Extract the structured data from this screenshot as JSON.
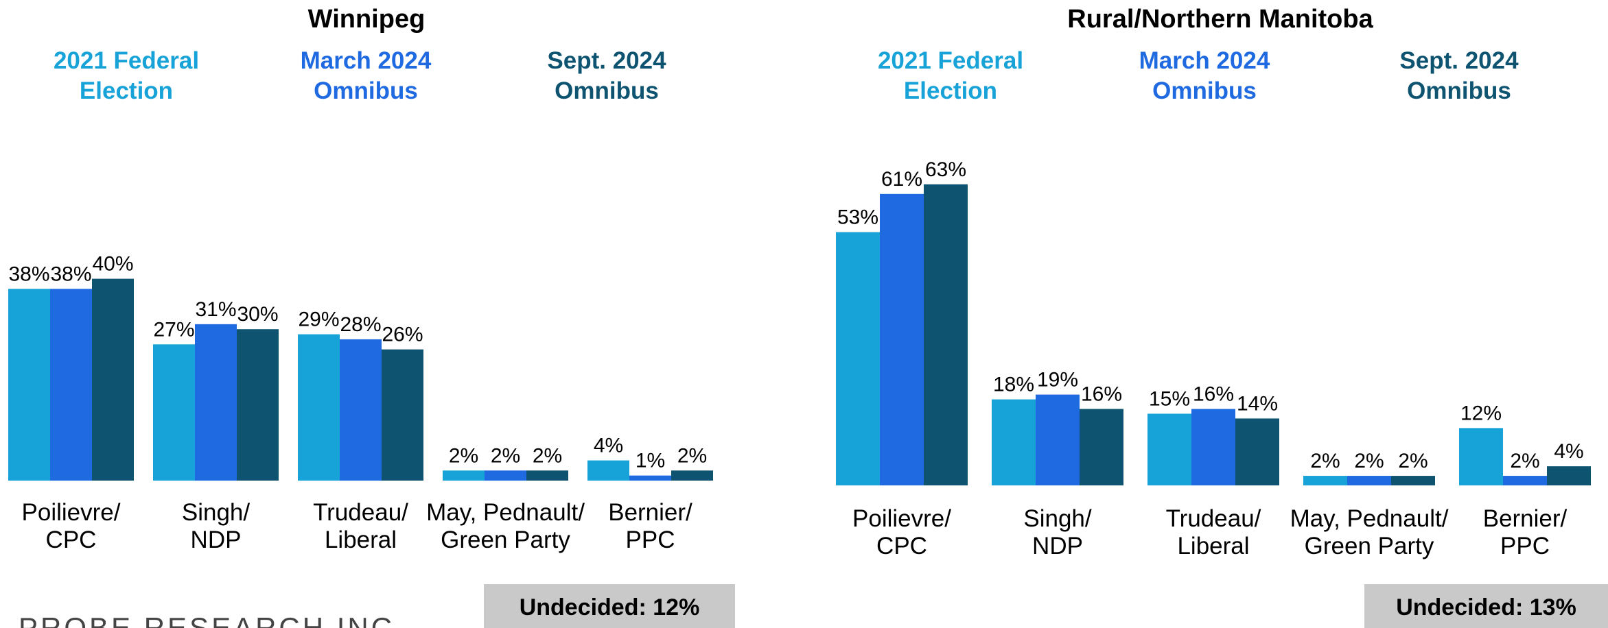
{
  "chart_data": [
    {
      "type": "bar",
      "title": "Winnipeg",
      "categories": [
        "Poilievre/\nCPC",
        "Singh/\nNDP",
        "Trudeau/\nLiberal",
        "May, Pednault/\nGreen Party",
        "Bernier/\nPPC"
      ],
      "series": [
        {
          "name": "2021 Federal\nElection",
          "color": "#17a2d8",
          "values": [
            38,
            27,
            29,
            2,
            4
          ],
          "value_labels": [
            "38%",
            "27%",
            "29%",
            "2%",
            "4%"
          ]
        },
        {
          "name": "March 2024\nOmnibus",
          "color": "#1f6ae0",
          "values": [
            38,
            31,
            28,
            2,
            1
          ],
          "value_labels": [
            "38%",
            "31%",
            "28%",
            "2%",
            "1%"
          ]
        },
        {
          "name": "Sept. 2024\nOmnibus",
          "color": "#0e5470",
          "values": [
            40,
            30,
            26,
            2,
            2
          ],
          "value_labels": [
            "40%",
            "30%",
            "26%",
            "2%",
            "2%"
          ]
        }
      ],
      "annotation": "Undecided: 12%"
    },
    {
      "type": "bar",
      "title": "Rural/Northern Manitoba",
      "categories": [
        "Poilievre/\nCPC",
        "Singh/\nNDP",
        "Trudeau/\nLiberal",
        "May, Pednault/\nGreen Party",
        "Bernier/\nPPC"
      ],
      "series": [
        {
          "name": "2021 Federal\nElection",
          "color": "#17a2d8",
          "values": [
            53,
            18,
            15,
            2,
            12
          ],
          "value_labels": [
            "53%",
            "18%",
            "15%",
            "2%",
            "12%"
          ]
        },
        {
          "name": "March 2024\nOmnibus",
          "color": "#1f6ae0",
          "values": [
            61,
            19,
            16,
            2,
            2
          ],
          "value_labels": [
            "61%",
            "19%",
            "16%",
            "2%",
            "2%"
          ]
        },
        {
          "name": "Sept. 2024\nOmnibus",
          "color": "#0e5470",
          "values": [
            63,
            16,
            14,
            2,
            4
          ],
          "value_labels": [
            "63%",
            "16%",
            "14%",
            "2%",
            "4%"
          ]
        }
      ],
      "annotation": "Undecided: 13%"
    }
  ],
  "footer": "PROBE RESEARCH INC."
}
